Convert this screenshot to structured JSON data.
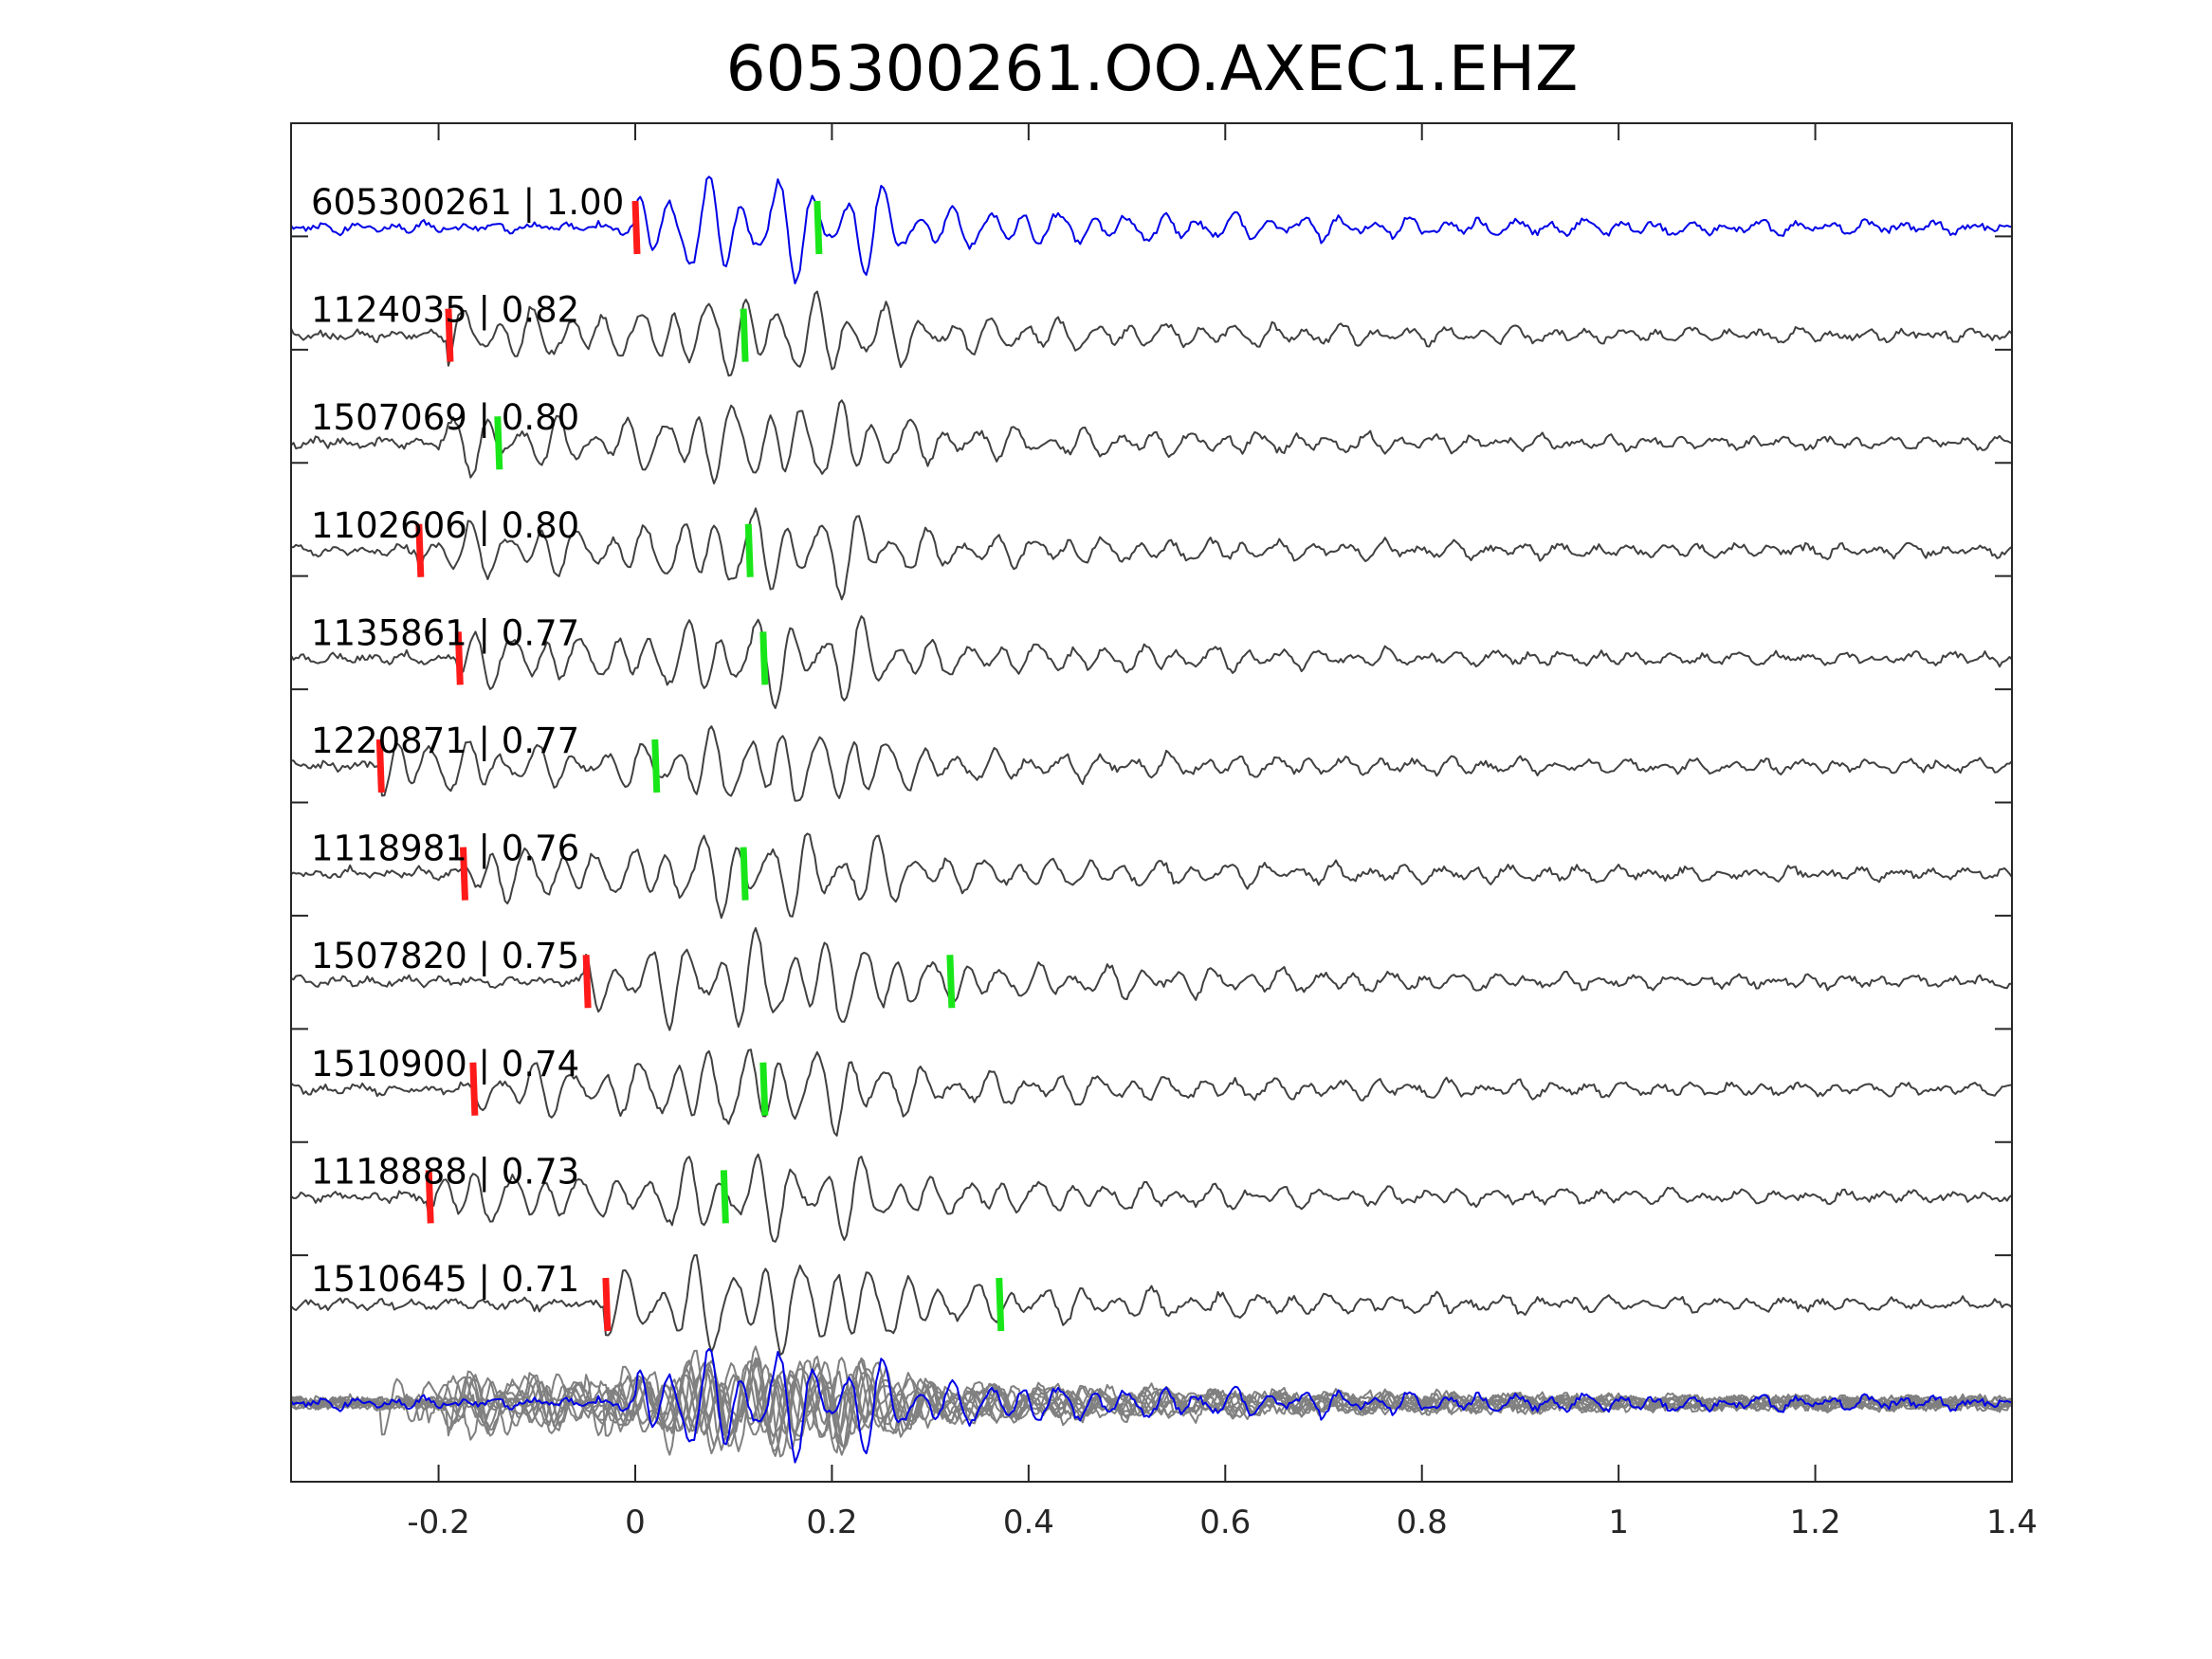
{
  "chart_data": {
    "type": "line",
    "title": "605300261.OO.AXEC1.EHZ",
    "xlabel": "",
    "ylabel": "",
    "xlim": [
      -0.35,
      1.4
    ],
    "xticks": [
      -0.2,
      0,
      0.2,
      0.4,
      0.6,
      0.8,
      1,
      1.2,
      1.4
    ],
    "xtick_labels": [
      "-0.2",
      "0",
      "0.2",
      "0.4",
      "0.6",
      "0.8",
      "1",
      "1.2",
      "1.4"
    ],
    "grid": false,
    "colors": {
      "primary_trace": "#0000e6",
      "neighbor_trace": "#404040",
      "stack_trace": "#808080",
      "p_pick": "#ff1a1a",
      "s_pick": "#19e619",
      "frame": "#262626"
    },
    "traces": [
      {
        "id": "605300261",
        "label": "605300261 | 1.00",
        "correlation": 1.0,
        "primary": true,
        "p_pick": 0.0,
        "s_pick": 0.185
      },
      {
        "id": "1124035",
        "label": "1124035 | 0.82",
        "correlation": 0.82,
        "p_pick": -0.19,
        "s_pick": 0.11
      },
      {
        "id": "1507069",
        "label": "1507069 | 0.80",
        "correlation": 0.8,
        "p_pick": null,
        "s_pick": -0.14
      },
      {
        "id": "1102606",
        "label": "1102606 | 0.80",
        "correlation": 0.8,
        "p_pick": -0.22,
        "s_pick": 0.115
      },
      {
        "id": "1135861",
        "label": "1135861 | 0.77",
        "correlation": 0.77,
        "p_pick": -0.18,
        "s_pick": 0.13
      },
      {
        "id": "1220871",
        "label": "1220871 | 0.77",
        "correlation": 0.77,
        "p_pick": -0.26,
        "s_pick": 0.02
      },
      {
        "id": "1118981",
        "label": "1118981 | 0.76",
        "correlation": 0.76,
        "p_pick": -0.175,
        "s_pick": 0.11
      },
      {
        "id": "1507820",
        "label": "1507820 | 0.75",
        "correlation": 0.75,
        "p_pick": -0.05,
        "s_pick": 0.32
      },
      {
        "id": "1510900",
        "label": "1510900 | 0.74",
        "correlation": 0.74,
        "p_pick": -0.165,
        "s_pick": 0.13
      },
      {
        "id": "1118888",
        "label": "1118888 | 0.73",
        "correlation": 0.73,
        "p_pick": -0.21,
        "s_pick": 0.09
      },
      {
        "id": "1510645",
        "label": "1510645 | 0.71",
        "correlation": 0.71,
        "p_pick": -0.03,
        "s_pick": 0.37
      }
    ],
    "overlay": {
      "description_visible": false,
      "includes": "all traces superimposed"
    }
  }
}
